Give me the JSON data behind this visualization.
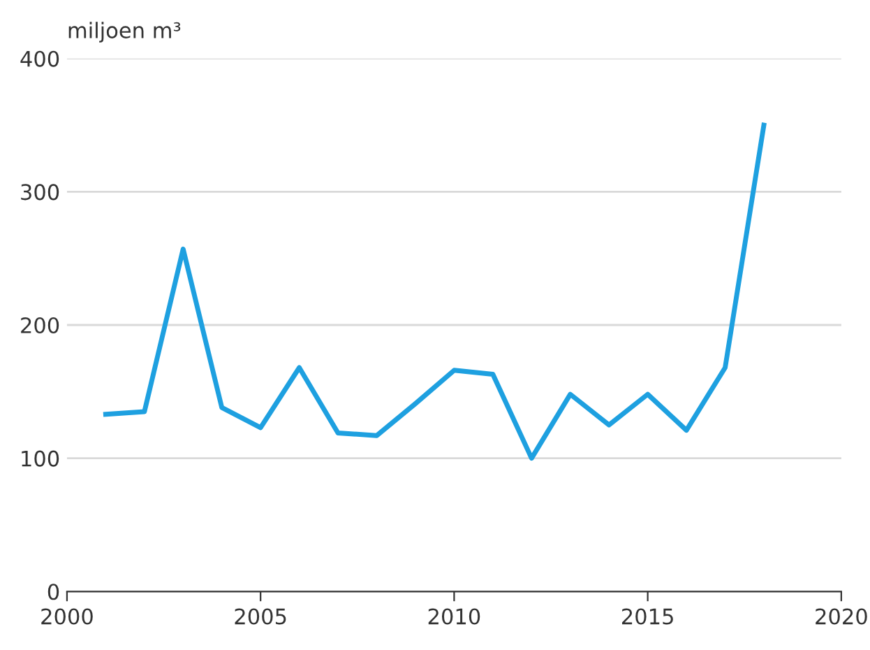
{
  "chart_data": {
    "type": "line",
    "ylabel": "miljoen m³",
    "x": [
      2001,
      2002,
      2003,
      2004,
      2005,
      2006,
      2007,
      2008,
      2009,
      2010,
      2011,
      2012,
      2013,
      2014,
      2015,
      2016,
      2017,
      2018
    ],
    "series": [
      {
        "color": "#1ea0e0",
        "values": [
          133,
          135,
          257,
          138,
          123,
          168,
          119,
          117,
          141,
          166,
          163,
          100,
          148,
          125,
          148,
          121,
          168,
          350
        ]
      }
    ],
    "xlim": [
      2000,
      2020
    ],
    "xticks": [
      2000,
      2005,
      2010,
      2015,
      2020
    ],
    "ylim": [
      0,
      400
    ],
    "yticks": [
      0,
      100,
      200,
      300,
      400
    ],
    "grid": "y",
    "legend": false
  }
}
